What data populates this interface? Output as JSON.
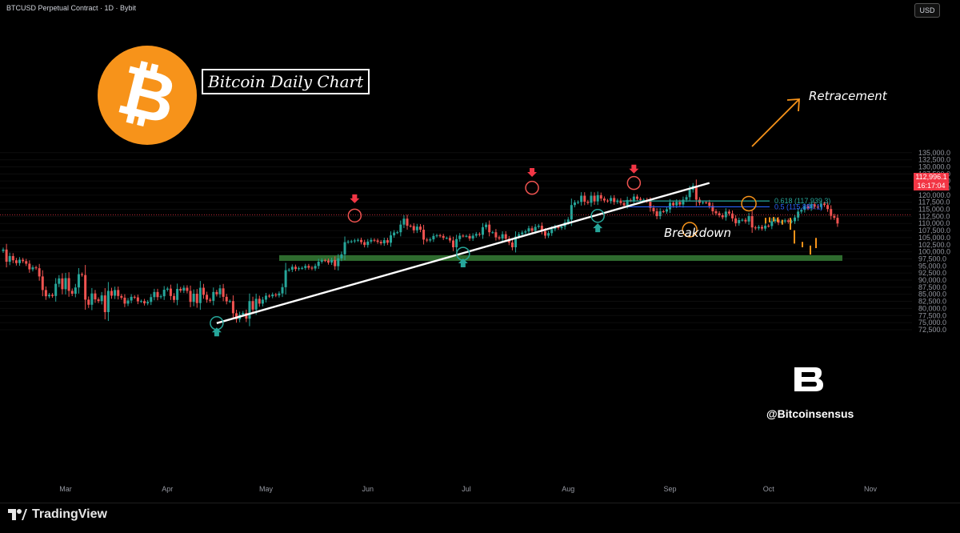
{
  "header": {
    "symbol_line": "BTCUSD Perpetual Contract · 1D · Bybit"
  },
  "currency_button": "USD",
  "chart_title": "Bitcoin Daily Chart",
  "brand": {
    "handle": "@Bitcoinsensus",
    "platform": "TradingView"
  },
  "annotations": {
    "retracement": "Retracement",
    "breakdown": "Breakdown"
  },
  "fib_levels": [
    {
      "label": "0.618 (117,939.3)",
      "value": 117939.3,
      "color": "#26a69a"
    },
    {
      "label": "0.5 (115,880.1)",
      "value": 115880.1,
      "color": "#2962ff"
    }
  ],
  "current_price": {
    "price": "112,996.1",
    "countdown": "16:17:04",
    "value": 112996.1
  },
  "colors": {
    "up": "#26a69a",
    "down": "#ef5350",
    "bg": "#000000",
    "support_zone": "#2e6b2e",
    "trendline": "#ffffff",
    "projection": "#f7931a",
    "bitcoin_orange": "#f7931a"
  },
  "chart_data": {
    "type": "candlestick",
    "title": "Bitcoin Daily Chart",
    "ylim": [
      71000,
      137000
    ],
    "y_ticks": [
      72500,
      75000,
      77500,
      80000,
      82500,
      85000,
      87500,
      90000,
      92500,
      95000,
      97500,
      100000,
      102500,
      105000,
      107500,
      110000,
      112500,
      115000,
      117500,
      120000,
      122500,
      125000,
      127500,
      130000,
      132500,
      135000
    ],
    "x_ticks": [
      "Mar",
      "Apr",
      "May",
      "Jun",
      "Jul",
      "Aug",
      "Sep",
      "Oct",
      "Nov"
    ],
    "x_tick_days": [
      19,
      50,
      80,
      111,
      141,
      172,
      203,
      233,
      264
    ],
    "series_close": [
      100800,
      96500,
      98500,
      97000,
      96000,
      97200,
      96700,
      95800,
      93800,
      94500,
      94200,
      91300,
      86500,
      84300,
      84800,
      84400,
      88700,
      90600,
      86800,
      90700,
      86200,
      85200,
      87400,
      92100,
      91800,
      83100,
      81300,
      85300,
      83200,
      82600,
      84600,
      78700,
      86200,
      84500,
      86500,
      84400,
      83800,
      81700,
      82800,
      84100,
      83900,
      82500,
      82600,
      81800,
      82300,
      84000,
      85800,
      84000,
      84300,
      86600,
      87000,
      84400,
      83000,
      86900,
      86300,
      87300,
      86200,
      82300,
      85200,
      81900,
      87300,
      84800,
      83100,
      82700,
      85800,
      85000,
      87100,
      84100,
      82500,
      82600,
      78300,
      76200,
      77800,
      78400,
      76400,
      82600,
      79600,
      83400,
      81700,
      83100,
      84500,
      84300,
      84900,
      84600,
      85300,
      87500,
      93500,
      93700,
      94700,
      93900,
      94200,
      94300,
      95000,
      94400,
      94100,
      95000,
      96500,
      97000,
      96900,
      96200,
      97100,
      94900,
      97700,
      99100,
      103400,
      103600,
      103700,
      104000,
      104200,
      103400,
      102400,
      103600,
      104200,
      104000,
      103500,
      103000,
      104100,
      103200,
      105800,
      106800,
      106900,
      109600,
      111700,
      109200,
      109100,
      107600,
      108900,
      107800,
      104300,
      104000,
      104400,
      105600,
      105800,
      105600,
      104900,
      104900,
      104000,
      101600,
      104500,
      105700,
      105600,
      105600,
      104700,
      105700,
      106300,
      106000,
      108700,
      109600,
      106900,
      106900,
      105100,
      104700,
      106200,
      104600,
      103300,
      101600,
      105400,
      106200,
      106800,
      107200,
      108300,
      107400,
      108800,
      109200,
      107300,
      105700,
      106600,
      108000,
      108800,
      108400,
      108900,
      110400,
      111400,
      116500,
      117400,
      117600,
      119800,
      117700,
      117300,
      119800,
      117800,
      120000,
      118800,
      118100,
      117900,
      119000,
      117600,
      118100,
      117200,
      116400,
      118300,
      118100,
      119500,
      118700,
      118300,
      118400,
      117900,
      115500,
      114300,
      112600,
      114300,
      114200,
      115000,
      117300,
      116400,
      117600,
      116700,
      118400,
      119300,
      121900,
      123300,
      118400,
      117300,
      117500,
      117400,
      116200,
      114300,
      113600,
      112900,
      112200,
      114200,
      113500,
      111800,
      110100,
      111200,
      111300,
      110700,
      112600,
      108600,
      108300,
      108800,
      108200,
      109200,
      109100,
      110800,
      111400,
      110300,
      110700,
      111100,
      110600,
      110800,
      112100,
      114200,
      114800,
      116100,
      115400,
      116800,
      115900,
      115800,
      117000,
      116500,
      115100,
      112700,
      112000,
      110000
    ]
  }
}
